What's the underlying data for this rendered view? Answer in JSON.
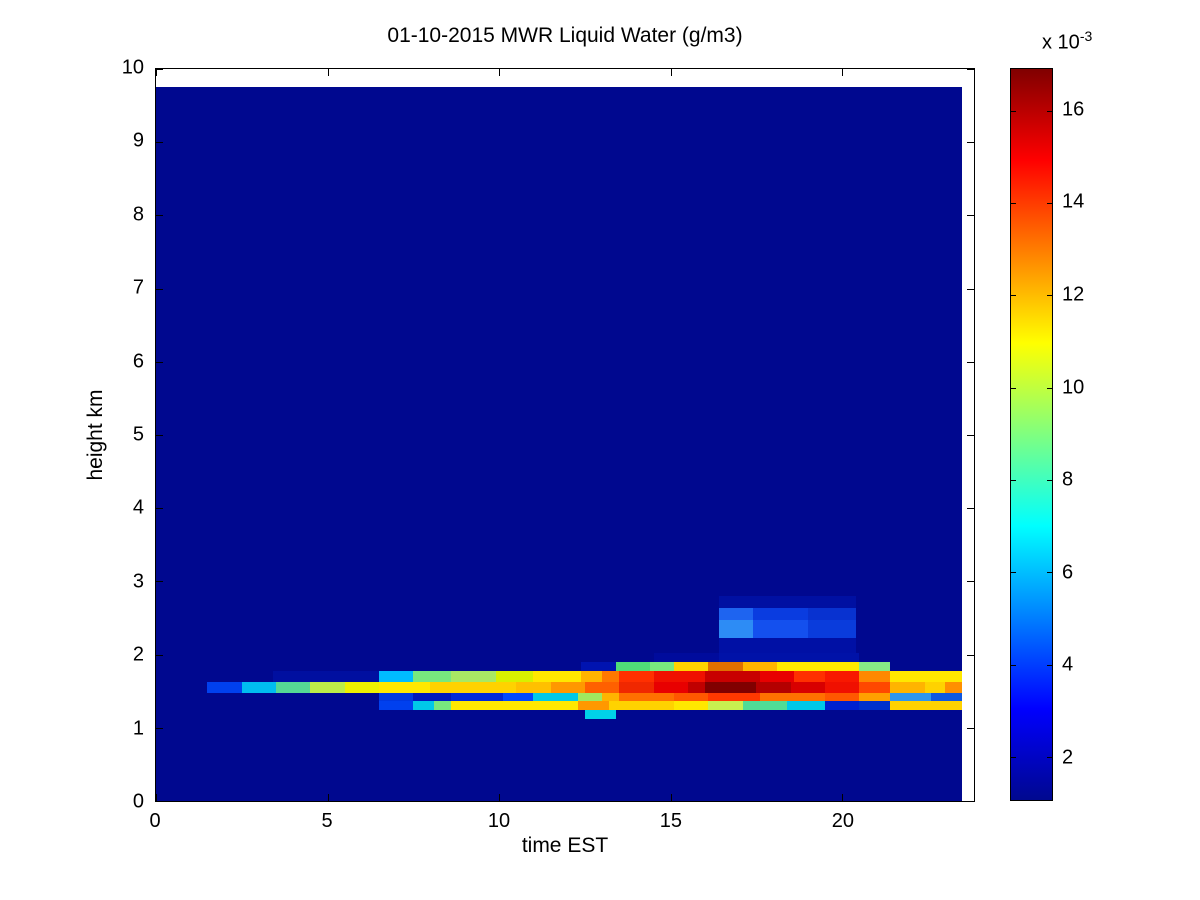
{
  "chart_data": {
    "type": "heatmap",
    "title": "01-10-2015 MWR Liquid Water (g/m3)",
    "xlabel": "time EST",
    "ylabel": "height km",
    "xlim": [
      0,
      23.84
    ],
    "ylim": [
      0,
      10
    ],
    "x_ticks": [
      0,
      5,
      10,
      15,
      20
    ],
    "y_ticks": [
      0,
      1,
      2,
      3,
      4,
      5,
      6,
      7,
      8,
      9,
      10
    ],
    "grid": false,
    "data_extent": {
      "time": [
        0,
        23.5
      ],
      "height": [
        0,
        9.75
      ]
    },
    "value_units": "g/m3 (run values listed as multiples of 1e-3)",
    "background_value_e3": 1,
    "background_color": "#00088f",
    "bands_note": "each band is a height layer in km; runs are [t_start_h, t_end_h, value_x1e-3, color]",
    "bands": [
      {
        "h": [
          1.9,
          2.02
        ],
        "runs": [
          [
            14.5,
            16.4,
            1.8,
            "#000b9c"
          ],
          [
            16.4,
            20.5,
            2.2,
            "#0012a8"
          ]
        ]
      },
      {
        "h": [
          2.02,
          2.22
        ],
        "runs": [
          [
            16.4,
            20.4,
            2.1,
            "#0010a5"
          ]
        ]
      },
      {
        "h": [
          2.22,
          2.47
        ],
        "runs": [
          [
            16.4,
            17.4,
            5.5,
            "#2d8cf5"
          ],
          [
            17.4,
            19.0,
            4.4,
            "#1450ee"
          ],
          [
            19.0,
            20.4,
            3.7,
            "#0a3cdc"
          ]
        ]
      },
      {
        "h": [
          2.47,
          2.63
        ],
        "runs": [
          [
            16.4,
            17.4,
            4.8,
            "#1e64f0"
          ],
          [
            17.4,
            19.0,
            3.8,
            "#0a3ce0"
          ],
          [
            19.0,
            20.4,
            3.4,
            "#0832d0"
          ]
        ]
      },
      {
        "h": [
          2.63,
          2.8
        ],
        "runs": [
          [
            16.4,
            20.4,
            2.0,
            "#0010a2"
          ]
        ]
      },
      {
        "h": [
          1.78,
          1.9
        ],
        "runs": [
          [
            12.4,
            13.4,
            2.2,
            "#0013b0"
          ],
          [
            13.4,
            14.4,
            8.8,
            "#50dc78"
          ],
          [
            14.4,
            15.1,
            9.0,
            "#78e87e"
          ],
          [
            15.1,
            16.1,
            11.5,
            "#ffd200"
          ],
          [
            16.1,
            17.1,
            12.8,
            "#e07000"
          ],
          [
            17.1,
            18.1,
            12.2,
            "#ffb400"
          ],
          [
            18.1,
            20.5,
            11.0,
            "#ffe800"
          ],
          [
            20.5,
            21.4,
            9.0,
            "#86ea86"
          ]
        ]
      },
      {
        "h": [
          1.62,
          1.78
        ],
        "runs": [
          [
            3.4,
            6.5,
            1.8,
            "#000fa0"
          ],
          [
            6.5,
            7.5,
            6.0,
            "#00bcff"
          ],
          [
            7.5,
            8.6,
            8.8,
            "#78e87e"
          ],
          [
            8.6,
            9.9,
            9.5,
            "#a8e864"
          ],
          [
            9.9,
            11.0,
            10.3,
            "#d8f000"
          ],
          [
            11.0,
            12.4,
            11.0,
            "#ffe800"
          ],
          [
            12.4,
            13.0,
            12.0,
            "#ffb400"
          ],
          [
            13.0,
            13.5,
            13.0,
            "#ff7800"
          ],
          [
            13.5,
            14.5,
            14.3,
            "#ff3000"
          ],
          [
            14.5,
            16.0,
            15.0,
            "#f01000"
          ],
          [
            16.0,
            17.6,
            15.8,
            "#c80000"
          ],
          [
            17.6,
            18.6,
            15.2,
            "#e80000"
          ],
          [
            18.6,
            19.5,
            14.3,
            "#ff3000"
          ],
          [
            19.5,
            20.5,
            14.8,
            "#f81800"
          ],
          [
            20.5,
            21.4,
            12.7,
            "#ff8800"
          ],
          [
            21.4,
            23.5,
            11.0,
            "#ffe800"
          ]
        ]
      },
      {
        "h": [
          1.48,
          1.62
        ],
        "runs": [
          [
            1.5,
            2.5,
            4.0,
            "#0040ee"
          ],
          [
            2.5,
            3.5,
            6.4,
            "#00bcf0"
          ],
          [
            3.5,
            4.5,
            8.6,
            "#55d895"
          ],
          [
            4.5,
            5.5,
            10.2,
            "#bcec48"
          ],
          [
            5.5,
            6.5,
            10.7,
            "#eef000"
          ],
          [
            6.5,
            8.0,
            11.0,
            "#ffe800"
          ],
          [
            8.0,
            10.5,
            11.5,
            "#ffd200"
          ],
          [
            10.5,
            11.5,
            12.0,
            "#ffc000"
          ],
          [
            11.5,
            12.5,
            12.5,
            "#ff9800"
          ],
          [
            12.5,
            13.5,
            13.5,
            "#ff6000"
          ],
          [
            13.5,
            14.5,
            14.5,
            "#f02800"
          ],
          [
            14.5,
            15.5,
            15.2,
            "#e80000"
          ],
          [
            15.5,
            16.0,
            15.8,
            "#c00000"
          ],
          [
            16.0,
            17.5,
            16.8,
            "#800000"
          ],
          [
            17.5,
            18.5,
            16.0,
            "#b40000"
          ],
          [
            18.5,
            19.5,
            15.5,
            "#d80000"
          ],
          [
            19.5,
            20.5,
            15.0,
            "#f01000"
          ],
          [
            20.5,
            21.4,
            13.8,
            "#ff4800"
          ],
          [
            21.4,
            22.4,
            12.4,
            "#ffb400"
          ],
          [
            22.4,
            23.0,
            11.8,
            "#ffd200"
          ],
          [
            23.0,
            23.5,
            12.7,
            "#ff9000"
          ]
        ]
      },
      {
        "h": [
          1.36,
          1.48
        ],
        "runs": [
          [
            6.5,
            7.5,
            3.8,
            "#0038e0"
          ],
          [
            7.5,
            8.6,
            2.6,
            "#0018bc"
          ],
          [
            8.6,
            10.1,
            3.2,
            "#0028d8"
          ],
          [
            10.1,
            11.0,
            4.2,
            "#0048ff"
          ],
          [
            11.0,
            12.3,
            6.8,
            "#00c8e8"
          ],
          [
            12.3,
            13.0,
            9.3,
            "#a0e860"
          ],
          [
            13.0,
            13.5,
            12.0,
            "#ffb400"
          ],
          [
            13.5,
            15.1,
            13.2,
            "#ff7000"
          ],
          [
            15.1,
            16.1,
            13.5,
            "#ff5800"
          ],
          [
            16.1,
            17.6,
            14.1,
            "#ff3800"
          ],
          [
            17.6,
            19.5,
            13.2,
            "#ff7000"
          ],
          [
            19.5,
            20.5,
            13.5,
            "#ff5800"
          ],
          [
            20.5,
            21.4,
            12.3,
            "#ffa000"
          ],
          [
            21.4,
            22.6,
            5.3,
            "#2e96f0"
          ],
          [
            22.6,
            23.5,
            4.0,
            "#1058e0"
          ]
        ]
      },
      {
        "h": [
          1.24,
          1.36
        ],
        "runs": [
          [
            6.5,
            7.5,
            4.0,
            "#0040ee"
          ],
          [
            7.5,
            8.1,
            6.8,
            "#00c8e8"
          ],
          [
            8.1,
            8.6,
            8.8,
            "#78e87e"
          ],
          [
            8.6,
            12.3,
            11.0,
            "#ffe800"
          ],
          [
            12.3,
            13.2,
            12.5,
            "#ff9800"
          ],
          [
            13.2,
            15.1,
            11.5,
            "#ffd200"
          ],
          [
            15.1,
            16.1,
            11.0,
            "#ffe800"
          ],
          [
            16.1,
            17.1,
            10.0,
            "#c8f050"
          ],
          [
            17.1,
            18.4,
            8.5,
            "#50dc96"
          ],
          [
            18.4,
            19.5,
            6.8,
            "#00c8e8"
          ],
          [
            19.5,
            20.5,
            3.0,
            "#0020d0"
          ],
          [
            20.5,
            21.4,
            3.4,
            "#0030cc"
          ],
          [
            21.4,
            23.5,
            11.5,
            "#ffd200"
          ]
        ]
      },
      {
        "h": [
          1.12,
          1.24
        ],
        "runs": [
          [
            12.5,
            13.4,
            7.0,
            "#00d2e8"
          ]
        ]
      }
    ]
  },
  "colorbar": {
    "exp_label": "x 10",
    "exp_sup": "-3",
    "tick_values": [
      2,
      4,
      6,
      8,
      10,
      12,
      14,
      16
    ],
    "range_e3": [
      1.07,
      16.9
    ],
    "colormap": "jet",
    "gradient_stops": [
      [
        0,
        "#00088f"
      ],
      [
        12.5,
        "#0000ff"
      ],
      [
        37.5,
        "#00ffff"
      ],
      [
        62.5,
        "#ffff00"
      ],
      [
        87.5,
        "#ff0000"
      ],
      [
        100,
        "#800000"
      ]
    ]
  }
}
